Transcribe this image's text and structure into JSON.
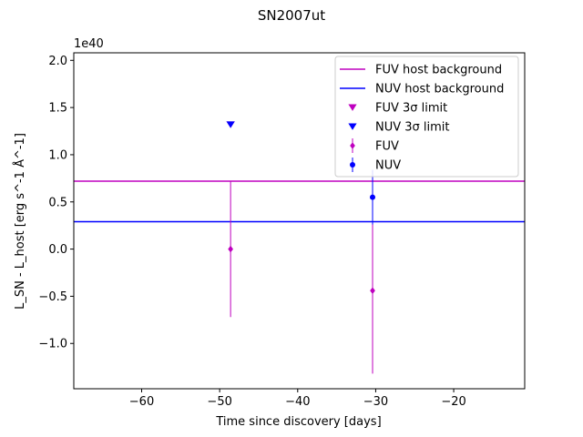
{
  "chart_data": {
    "type": "scatter",
    "title": "SN2007ut",
    "xlabel": "Time since discovery [days]",
    "ylabel": "L_SN - L_host [erg s^-1 Å^-1]",
    "offset_label": "1e40",
    "xlim": [
      -68.7,
      -10.9
    ],
    "ylim": [
      -1.48,
      2.08
    ],
    "x_ticks": [
      -60,
      -50,
      -40,
      -30,
      -20
    ],
    "x_tick_labels": [
      "−60",
      "−50",
      "−40",
      "−30",
      "−20"
    ],
    "y_ticks": [
      -1.0,
      -0.5,
      0.0,
      0.5,
      1.0,
      1.5,
      2.0
    ],
    "y_tick_labels": [
      "−1.0",
      "−0.5",
      "0.0",
      "0.5",
      "1.0",
      "1.5",
      "2.0"
    ],
    "legend_position": "top-right",
    "hlines": [
      {
        "name": "FUV host background",
        "y": 0.72,
        "color": "#bf00bf"
      },
      {
        "name": "NUV host background",
        "y": 0.29,
        "color": "#0000ff"
      }
    ],
    "limits": [
      {
        "name": "FUV 3σ limit",
        "color": "#bf00bf",
        "marker": "triangle-down",
        "points": [
          {
            "x": -48.6,
            "y": 1.32
          }
        ]
      },
      {
        "name": "NUV 3σ limit",
        "color": "#0000ff",
        "marker": "triangle-down",
        "points": [
          {
            "x": -48.6,
            "y": 1.32
          }
        ]
      }
    ],
    "errorbar_series": [
      {
        "name": "FUV",
        "color": "#bf00bf",
        "marker": "diamond",
        "points": [
          {
            "x": -48.6,
            "y": 0.0,
            "yerr": 0.72
          },
          {
            "x": -30.4,
            "y": -0.44,
            "yerr": 0.88
          }
        ]
      },
      {
        "name": "NUV",
        "color": "#0000ff",
        "marker": "circle",
        "points": [
          {
            "x": -30.4,
            "y": 0.55,
            "yerr": 0.29
          }
        ]
      }
    ],
    "legend": [
      {
        "label": "FUV host background",
        "kind": "line",
        "color": "#bf00bf"
      },
      {
        "label": "NUV host background",
        "kind": "line",
        "color": "#0000ff"
      },
      {
        "label": "FUV 3σ limit",
        "kind": "triangle-down",
        "color": "#bf00bf"
      },
      {
        "label": "NUV 3σ limit",
        "kind": "triangle-down",
        "color": "#0000ff"
      },
      {
        "label": "FUV",
        "kind": "diamond-err",
        "color": "#bf00bf"
      },
      {
        "label": "NUV",
        "kind": "circle-err",
        "color": "#0000ff"
      }
    ]
  }
}
